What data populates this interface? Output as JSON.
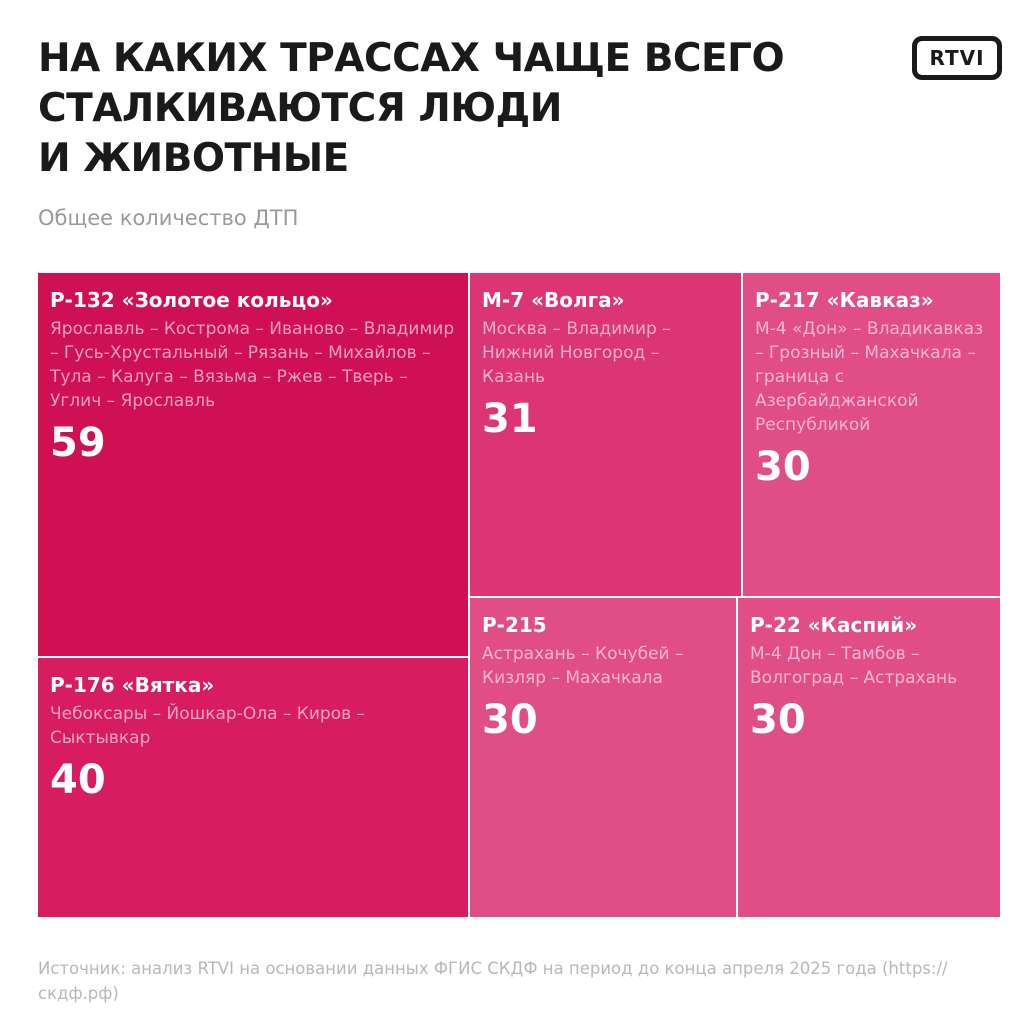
{
  "title_lines": [
    "НА КАКИХ ТРАССАХ ЧАЩЕ ВСЕГО",
    "СТАЛКИВАЮТСЯ ЛЮДИ",
    "И ЖИВОТНЫЕ"
  ],
  "subtitle": "Общее количество ДТП",
  "logo": "RTVI",
  "source": "Источник: анализ RTVI на основании данных ФГИС СКДФ на период до конца апреля 2025 года (https://скдф.рф)",
  "chart_data": {
    "type": "treemap",
    "items": [
      {
        "road": "Р-132 «Золотое кольцо»",
        "route": "Ярославль – Кострома – Иваново – Владимир – Гусь-Хрустальный – Рязань – Михайлов – Тула – Калуга – Вязьма – Ржев – Тверь – Углич – Ярославль",
        "value": 59,
        "color": "#cf1154"
      },
      {
        "road": "Р-176 «Вятка»",
        "route": "Чебоксары – Йошкар-Ола – Киров – Сыктывкар",
        "value": 40,
        "color": "#d71c5f"
      },
      {
        "road": "М-7 «Волга»",
        "route": "Москва – Владимир – Нижний Новгород – Казань",
        "value": 31,
        "color": "#dc3574"
      },
      {
        "road": "Р-217 «Кавказ»",
        "route": "М-4 «Дон» – Владикавказ – Грозный – Махачкала – граница с Азербайджанской Республикой",
        "value": 30,
        "color": "#e14e86"
      },
      {
        "road": "Р-215",
        "route": "Астрахань – Кочубей – Кизляр – Махачкала",
        "value": 30,
        "color": "#e14e86"
      },
      {
        "road": "Р-22 «Каспий»",
        "route": "М-4 Дон – Тамбов – Волгоград – Астрахань",
        "value": 30,
        "color": "#e14e86"
      }
    ]
  }
}
